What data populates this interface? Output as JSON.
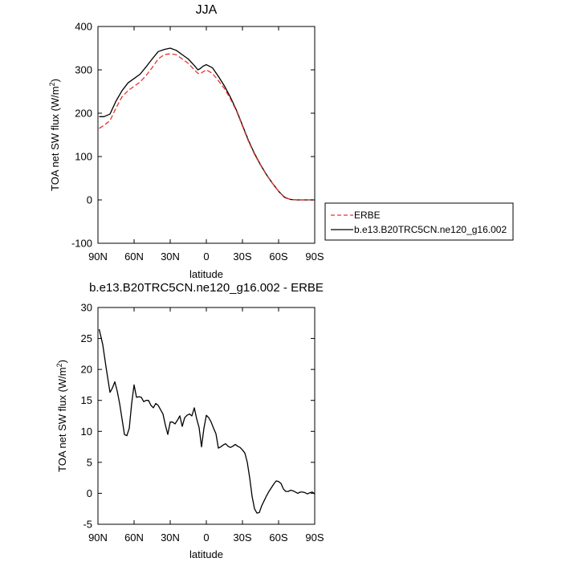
{
  "chart_data": [
    {
      "type": "line",
      "title": "JJA",
      "xlabel": "latitude",
      "ylabel": "TOA net SW flux (W/m",
      "ylabel_sup": "2",
      "ylabel_close": ")",
      "xlim": [
        -90,
        90
      ],
      "ylim": [
        -100,
        400
      ],
      "xticks": [
        {
          "value": -90,
          "label": "90N"
        },
        {
          "value": -60,
          "label": "60N"
        },
        {
          "value": -30,
          "label": "30N"
        },
        {
          "value": 0,
          "label": "0"
        },
        {
          "value": 30,
          "label": "30S"
        },
        {
          "value": 60,
          "label": "60S"
        },
        {
          "value": 90,
          "label": "90S"
        }
      ],
      "yticks": [
        -100,
        0,
        100,
        200,
        300,
        400
      ],
      "legend": {
        "placement": "outside-right",
        "entries": [
          {
            "name": "ERBE",
            "color": "#e8332d",
            "dash": true
          },
          {
            "name": "b.e13.B20TRC5CN.ne120_g16.002",
            "color": "#000000",
            "dash": false
          }
        ]
      },
      "series": [
        {
          "name": "ERBE",
          "color": "#e8332d",
          "dash": true,
          "x": [
            -89,
            -85,
            -80,
            -75,
            -70,
            -65,
            -60,
            -55,
            -50,
            -45,
            -40,
            -35,
            -30,
            -25,
            -20,
            -15,
            -10,
            -7,
            -5,
            -3,
            0,
            5,
            10,
            15,
            20,
            25,
            30,
            35,
            40,
            45,
            50,
            55,
            60,
            65,
            70,
            75,
            80,
            85,
            89
          ],
          "y": [
            165,
            172,
            183,
            212,
            238,
            252,
            262,
            272,
            287,
            305,
            325,
            335,
            337,
            335,
            325,
            315,
            300,
            292,
            291,
            295,
            300,
            292,
            275,
            257,
            233,
            205,
            170,
            135,
            105,
            80,
            57,
            38,
            20,
            5,
            1,
            0,
            0,
            0,
            0
          ]
        },
        {
          "name": "b.e13.B20TRC5CN.ne120_g16.002",
          "color": "#000000",
          "dash": false,
          "x": [
            -89,
            -85,
            -80,
            -75,
            -70,
            -65,
            -60,
            -55,
            -50,
            -45,
            -40,
            -35,
            -30,
            -25,
            -20,
            -15,
            -10,
            -7,
            -5,
            -3,
            0,
            5,
            10,
            15,
            20,
            25,
            30,
            35,
            40,
            45,
            50,
            55,
            60,
            65,
            70,
            75,
            80,
            85,
            89
          ],
          "y": [
            192,
            192,
            198,
            228,
            252,
            270,
            280,
            290,
            307,
            325,
            342,
            347,
            350,
            345,
            335,
            325,
            310,
            300,
            303,
            308,
            312,
            305,
            285,
            263,
            237,
            207,
            172,
            137,
            107,
            81,
            58,
            38,
            20,
            6,
            1,
            0,
            0,
            0,
            0
          ]
        }
      ]
    },
    {
      "type": "line",
      "title": "b.e13.B20TRC5CN.ne120_g16.002 - ERBE",
      "xlabel": "latitude",
      "ylabel": "TOA net SW flux (W/m",
      "ylabel_sup": "2",
      "ylabel_close": ")",
      "xlim": [
        -90,
        90
      ],
      "ylim": [
        -5,
        30
      ],
      "xticks": [
        {
          "value": -90,
          "label": "90N"
        },
        {
          "value": -60,
          "label": "60N"
        },
        {
          "value": -30,
          "label": "30N"
        },
        {
          "value": 0,
          "label": "0"
        },
        {
          "value": 30,
          "label": "30S"
        },
        {
          "value": 60,
          "label": "60S"
        },
        {
          "value": 90,
          "label": "90S"
        }
      ],
      "yticks": [
        -5,
        0,
        5,
        10,
        15,
        20,
        25,
        30
      ],
      "series": [
        {
          "name": "b.e13.B20TRC5CN.ne120_g16.002 - ERBE",
          "color": "#000000",
          "dash": false,
          "x": [
            -89,
            -86,
            -83,
            -80,
            -78,
            -76,
            -74,
            -72,
            -70,
            -68,
            -66,
            -64,
            -62,
            -60,
            -58,
            -56,
            -54,
            -52,
            -50,
            -48,
            -46,
            -44,
            -42,
            -40,
            -38,
            -36,
            -34,
            -32,
            -30,
            -28,
            -26,
            -24,
            -22,
            -20,
            -18,
            -16,
            -14,
            -12,
            -10,
            -8,
            -6,
            -4,
            -2,
            0,
            2,
            4,
            6,
            8,
            10,
            12,
            14,
            16,
            18,
            20,
            22,
            24,
            26,
            28,
            30,
            32,
            34,
            36,
            38,
            40,
            42,
            44,
            46,
            48,
            50,
            52,
            54,
            56,
            58,
            60,
            62,
            64,
            66,
            68,
            70,
            72,
            74,
            76,
            78,
            80,
            82,
            84,
            86,
            88,
            90
          ],
          "y": [
            26.5,
            24,
            20,
            16.3,
            17,
            18,
            16.5,
            14.5,
            12,
            9.5,
            9.3,
            10.5,
            14.5,
            17.5,
            15.5,
            15.6,
            15.5,
            14.8,
            15,
            15,
            14.2,
            13.8,
            14.5,
            14.2,
            13.5,
            12.8,
            11,
            9.5,
            11.5,
            11.5,
            11.2,
            11.8,
            12.5,
            10.8,
            12.2,
            12.6,
            12.8,
            12.5,
            13.8,
            12,
            10.6,
            7.5,
            10.5,
            12.6,
            12.2,
            11.5,
            10.5,
            9.6,
            7.3,
            7.5,
            7.8,
            8,
            7.6,
            7.4,
            7.6,
            7.9,
            7.6,
            7.4,
            7,
            6.5,
            5,
            2.5,
            -0.5,
            -2.5,
            -3.2,
            -3.1,
            -2,
            -1.2,
            -0.4,
            0.3,
            0.9,
            1.5,
            2,
            1.9,
            1.6,
            0.7,
            0.3,
            0.3,
            0.5,
            0.4,
            0.2,
            0,
            0.2,
            0.2,
            0.1,
            -0.1,
            0.1,
            0.2,
            -0.1
          ]
        }
      ]
    }
  ]
}
